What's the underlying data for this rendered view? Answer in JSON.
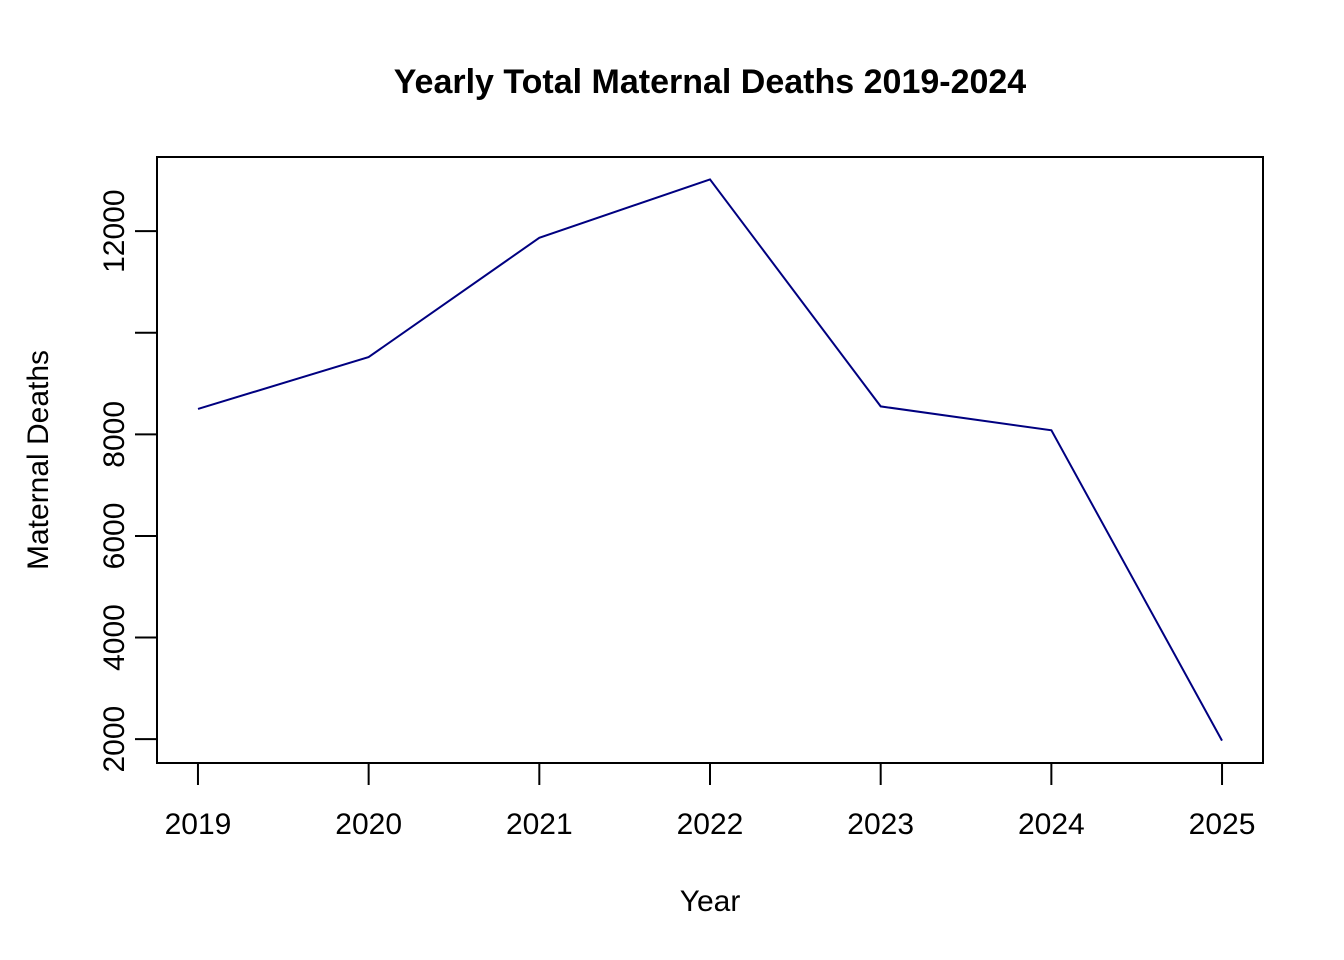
{
  "chart_data": {
    "type": "line",
    "title": "Yearly Total Maternal Deaths 2019-2024",
    "xlabel": "Year",
    "ylabel": "Maternal Deaths",
    "x": [
      2019,
      2020,
      2021,
      2022,
      2023,
      2024,
      2025
    ],
    "series": [
      {
        "values": [
          8500,
          9520,
          11870,
          13020,
          8550,
          8080,
          1970
        ]
      }
    ],
    "xticks": [
      "2019",
      "2020",
      "2021",
      "2022",
      "2023",
      "2024",
      "2025"
    ],
    "yticks": [
      2000,
      4000,
      6000,
      8000,
      10000,
      12000
    ],
    "ytick_labels": [
      "2000",
      "4000",
      "6000",
      "8000",
      "",
      "12000"
    ],
    "xlim": [
      2018.76,
      2025.24
    ],
    "ylim": [
      1530,
      13460
    ],
    "grid": false,
    "line_color": "#000080"
  }
}
